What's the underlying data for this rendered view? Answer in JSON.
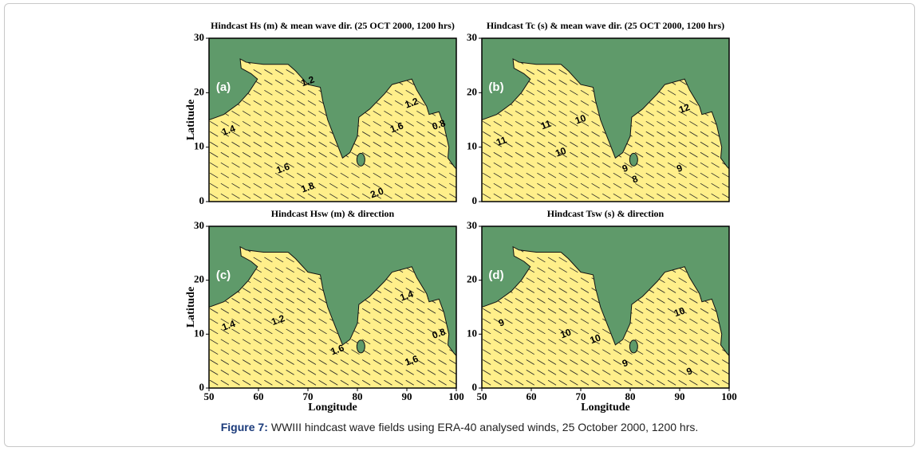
{
  "chart_data": [
    {
      "type": "contour-map",
      "title": "Hindcast Hs (m) & mean wave dir. (25 OCT 2000, 1200 hrs)",
      "panel_label": "(a)",
      "ylabel": "Latitude",
      "xlim": [
        50,
        100
      ],
      "ylim": [
        0,
        30
      ],
      "yticks": [
        0,
        10,
        20,
        30
      ],
      "contour_labels": [
        {
          "value": 1.4,
          "lon": 54,
          "lat": 13
        },
        {
          "value": 1.2,
          "lon": 70,
          "lat": 22
        },
        {
          "value": 1.6,
          "lon": 65,
          "lat": 6
        },
        {
          "value": 1.8,
          "lon": 70,
          "lat": 2.5
        },
        {
          "value": 2,
          "label": "2.0",
          "lon": 84,
          "lat": 1.5
        },
        {
          "value": 1.2,
          "lon": 91,
          "lat": 18
        },
        {
          "value": 1.6,
          "lon": 88,
          "lat": 13.5
        },
        {
          "value": 0.8,
          "lon": 96.5,
          "lat": 14
        }
      ]
    },
    {
      "type": "contour-map",
      "title": "Hindcast Tc (s) & mean wave dir. (25 OCT 2000, 1200 hrs)",
      "panel_label": "(b)",
      "xlim": [
        50,
        100
      ],
      "ylim": [
        0,
        30
      ],
      "yticks": [
        0,
        10,
        20,
        30
      ],
      "contour_labels": [
        {
          "value": 11,
          "lon": 54,
          "lat": 11
        },
        {
          "value": 11,
          "lon": 63,
          "lat": 14
        },
        {
          "value": 10,
          "lon": 66,
          "lat": 9
        },
        {
          "value": 10,
          "lon": 70,
          "lat": 15
        },
        {
          "value": 9,
          "lon": 79,
          "lat": 6
        },
        {
          "value": 8,
          "lon": 81,
          "lat": 4
        },
        {
          "value": 12,
          "lon": 91,
          "lat": 17
        },
        {
          "value": 9,
          "lon": 90,
          "lat": 6
        }
      ]
    },
    {
      "type": "contour-map",
      "title": "Hindcast Hsw (m) & direction",
      "panel_label": "(c)",
      "xlabel": "Longitude",
      "ylabel": "Latitude",
      "xlim": [
        50,
        100
      ],
      "ylim": [
        0,
        30
      ],
      "xticks": [
        50,
        60,
        70,
        80,
        90,
        100
      ],
      "yticks": [
        0,
        10,
        20,
        30
      ],
      "contour_labels": [
        {
          "value": 1.4,
          "lon": 54,
          "lat": 11.5
        },
        {
          "value": 1.2,
          "lon": 64,
          "lat": 12.5
        },
        {
          "value": 1.6,
          "lon": 76,
          "lat": 7
        },
        {
          "value": 1.4,
          "lon": 90,
          "lat": 17
        },
        {
          "value": 1.6,
          "lon": 91,
          "lat": 5
        },
        {
          "value": 0.8,
          "lon": 96.5,
          "lat": 10
        }
      ]
    },
    {
      "type": "contour-map",
      "title": "Hindcast Tsw (s) & direction",
      "panel_label": "(d)",
      "xlabel": "Longitude",
      "xlim": [
        50,
        100
      ],
      "ylim": [
        0,
        30
      ],
      "xticks": [
        50,
        60,
        70,
        80,
        90,
        100
      ],
      "yticks": [
        0,
        10,
        20,
        30
      ],
      "contour_labels": [
        {
          "value": 9,
          "lon": 54,
          "lat": 12
        },
        {
          "value": 10,
          "lon": 67,
          "lat": 10
        },
        {
          "value": 10,
          "lon": 73,
          "lat": 9
        },
        {
          "value": 9,
          "lon": 79,
          "lat": 4.5
        },
        {
          "value": 10,
          "lon": 90,
          "lat": 14
        },
        {
          "value": 9,
          "lon": 92,
          "lat": 3
        }
      ]
    }
  ],
  "caption": {
    "label": "Figure 7:",
    "text": "WWIII hindcast wave fields using ERA-40 analysed winds, 25 October 2000, 1200 hrs."
  }
}
